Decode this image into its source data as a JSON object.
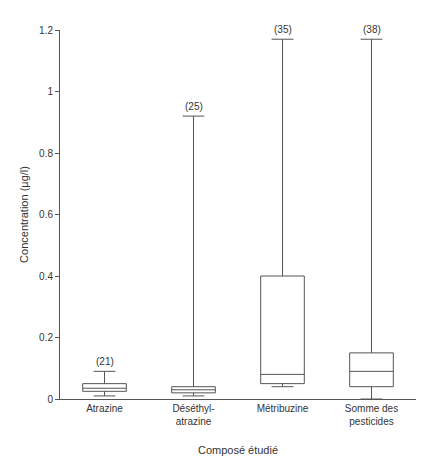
{
  "chart_data": {
    "type": "box",
    "x_label": "Composé étudié",
    "y_label": "Concentration (µg/l)",
    "categories": [
      "Atrazine",
      "Déséthyl-atrazine",
      "Métribuzine",
      "Somme des pesticides"
    ],
    "lower_whisker": [
      0.01,
      0.01,
      0.04,
      0.0
    ],
    "q1": [
      0.025,
      0.02,
      0.05,
      0.04
    ],
    "median": [
      0.035,
      0.03,
      0.08,
      0.09
    ],
    "q3": [
      0.05,
      0.04,
      0.4,
      0.15
    ],
    "upper_whisker": [
      0.09,
      0.92,
      1.17,
      1.17
    ],
    "annotations": [
      {
        "category": "Atrazine",
        "text": "(21)"
      },
      {
        "category": "Déséthyl-atrazine",
        "text": "(25)"
      },
      {
        "category": "Métribuzine",
        "text": "(35)"
      },
      {
        "category": "Somme des pesticides",
        "text": "(38)"
      }
    ],
    "ylim": [
      0,
      1.2
    ],
    "yticks": [
      0,
      0.2,
      0.4,
      0.6,
      0.8,
      1,
      1.2
    ],
    "color": "#555555",
    "grid": false
  }
}
